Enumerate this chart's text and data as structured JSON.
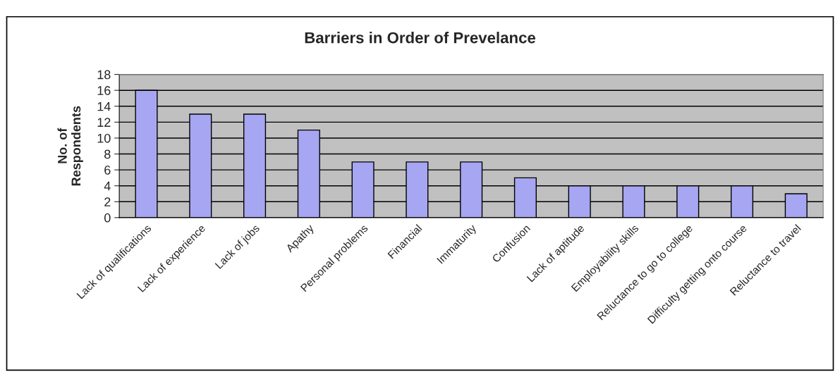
{
  "chart_data": {
    "type": "bar",
    "title": "Barriers in Order of Prevelance",
    "ylabel": "No. of\nRespondents",
    "categories": [
      "Lack of qualifications",
      "Lack of experience",
      "Lack of jobs",
      "Apathy",
      "Personal problems",
      "Financial",
      "Immaturity",
      "Confusion",
      "Lack of aptitude",
      "Employability skills",
      "Reluctance to go to college",
      "Difficulty getting onto course",
      "Reluctance to travel"
    ],
    "values": [
      16,
      13,
      13,
      11,
      7,
      7,
      7,
      5,
      4,
      4,
      4,
      4,
      3
    ],
    "color": "#9999ff",
    "ylim": [
      0,
      18
    ],
    "yticks": [
      0,
      2,
      4,
      6,
      8,
      10,
      12,
      14,
      16,
      18
    ],
    "grid": "y",
    "legend": false
  }
}
